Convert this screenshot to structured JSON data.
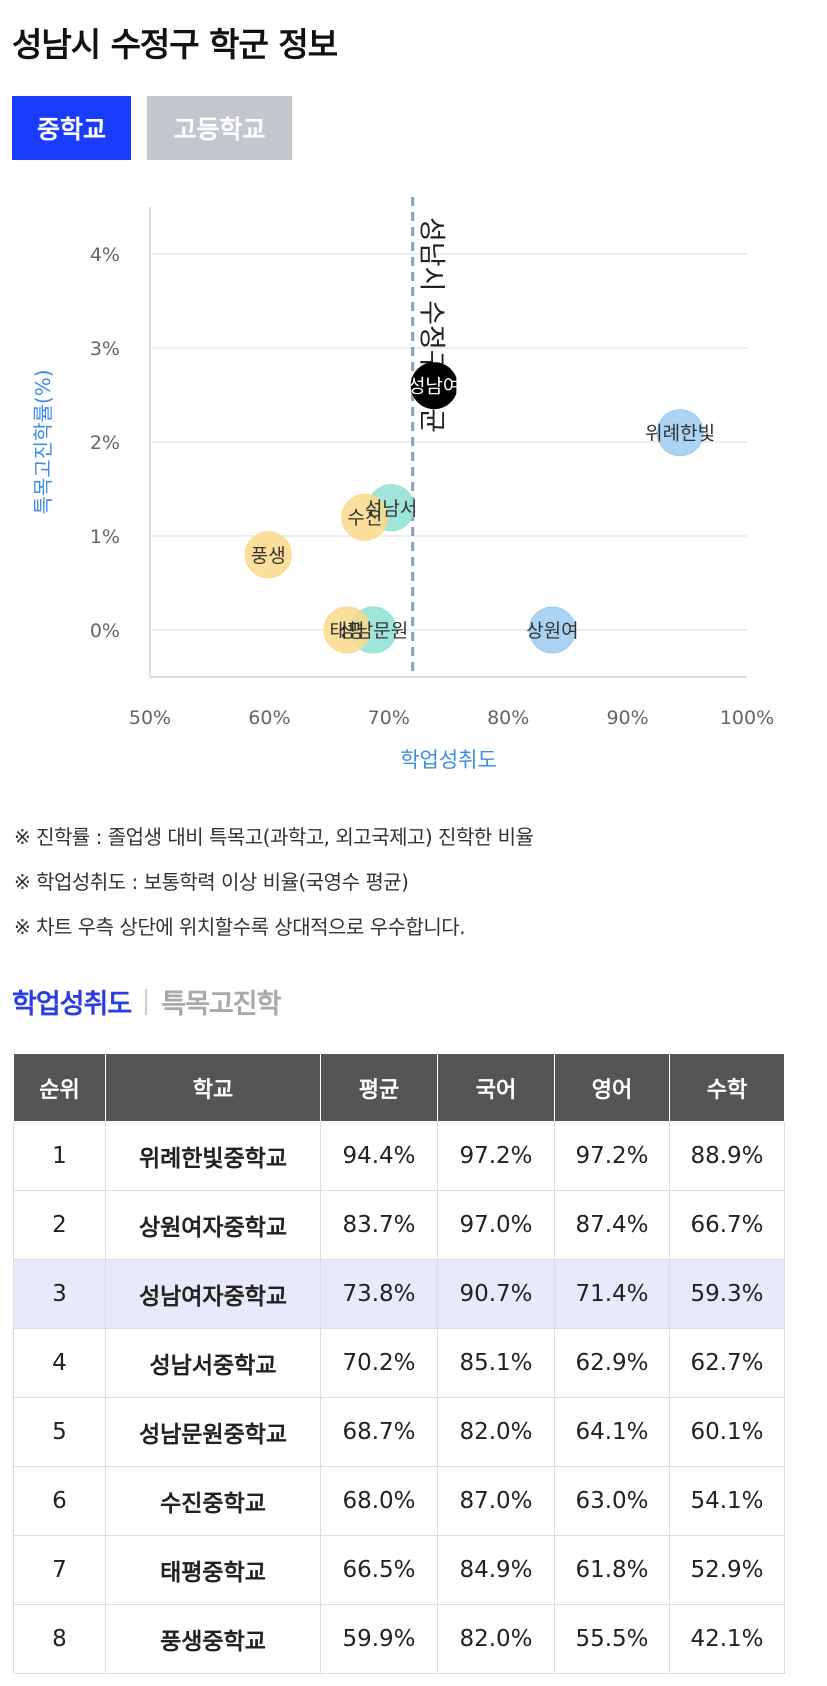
{
  "page": {
    "title": "성남시 수정구 학군 정보"
  },
  "tabs": [
    {
      "label": "중학교",
      "active": true
    },
    {
      "label": "고등학교",
      "active": false
    }
  ],
  "chart_data": {
    "type": "scatter",
    "xlabel": "학업성취도",
    "ylabel": "특목고진학률(%)",
    "xlim": [
      50,
      100
    ],
    "ylim": [
      -0.5,
      4.5
    ],
    "xticks": [
      "50%",
      "60%",
      "70%",
      "80%",
      "90%",
      "100%"
    ],
    "yticks": [
      "0%",
      "1%",
      "2%",
      "3%",
      "4%"
    ],
    "xtick_values": [
      50,
      60,
      70,
      80,
      90,
      100
    ],
    "ytick_values": [
      0,
      1,
      2,
      3,
      4
    ],
    "reference_line": {
      "x": 72,
      "label": "성남시 수정구 평균"
    },
    "grid": true,
    "colors": {
      "blue": "#9ccbf2",
      "yellow": "#fcd98c",
      "teal": "#8ee1d6",
      "black": "#000000",
      "ref_line": "#8aa0b4",
      "axis_label": "#3d8ee6"
    },
    "points": [
      {
        "label": "위례한빛",
        "x": 94.4,
        "y": 2.1,
        "color": "blue"
      },
      {
        "label": "상원여",
        "x": 83.7,
        "y": 0.0,
        "color": "blue"
      },
      {
        "label": "성남여",
        "x": 73.8,
        "y": 2.6,
        "color": "black"
      },
      {
        "label": "성남서",
        "x": 70.2,
        "y": 1.3,
        "color": "teal"
      },
      {
        "label": "성남문원",
        "x": 68.7,
        "y": 0.0,
        "color": "teal"
      },
      {
        "label": "수진",
        "x": 68.0,
        "y": 1.2,
        "color": "yellow"
      },
      {
        "label": "태평",
        "x": 66.5,
        "y": 0.0,
        "color": "yellow"
      },
      {
        "label": "풍생",
        "x": 59.9,
        "y": 0.8,
        "color": "yellow"
      }
    ]
  },
  "notes": [
    "※ 진학률 : 졸업생 대비 특목고(과학고, 외고국제고) 진학한 비율",
    "※ 학업성취도 : 보통학력 이상 비율(국영수 평균)",
    "※ 차트 우측 상단에 위치할수록 상대적으로 우수합니다."
  ],
  "subtabs": [
    {
      "label": "학업성취도",
      "active": true
    },
    {
      "label": "특목고진학",
      "active": false
    }
  ],
  "table": {
    "headers": [
      "순위",
      "학교",
      "평균",
      "국어",
      "영어",
      "수학"
    ],
    "highlight_row": 2,
    "rows": [
      [
        "1",
        "위례한빛중학교",
        "94.4%",
        "97.2%",
        "97.2%",
        "88.9%"
      ],
      [
        "2",
        "상원여자중학교",
        "83.7%",
        "97.0%",
        "87.4%",
        "66.7%"
      ],
      [
        "3",
        "성남여자중학교",
        "73.8%",
        "90.7%",
        "71.4%",
        "59.3%"
      ],
      [
        "4",
        "성남서중학교",
        "70.2%",
        "85.1%",
        "62.9%",
        "62.7%"
      ],
      [
        "5",
        "성남문원중학교",
        "68.7%",
        "82.0%",
        "64.1%",
        "60.1%"
      ],
      [
        "6",
        "수진중학교",
        "68.0%",
        "87.0%",
        "63.0%",
        "54.1%"
      ],
      [
        "7",
        "태평중학교",
        "66.5%",
        "84.9%",
        "61.8%",
        "52.9%"
      ],
      [
        "8",
        "풍생중학교",
        "59.9%",
        "82.0%",
        "55.5%",
        "42.1%"
      ]
    ]
  }
}
